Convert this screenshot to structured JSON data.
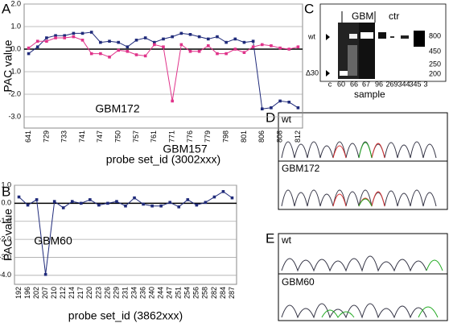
{
  "panel_labels": [
    "A",
    "B",
    "C",
    "D",
    "E"
  ],
  "chart_data": [
    {
      "type": "line",
      "y_label": "PAC value",
      "x_label": "probe set_id (3002xxx)",
      "categories": [
        "641",
        null,
        "729",
        null,
        "733",
        null,
        "741",
        null,
        "747",
        null,
        "750",
        null,
        "757",
        null,
        "761",
        null,
        "771",
        null,
        "776",
        null,
        "779",
        null,
        "798",
        null,
        "801",
        null,
        "806",
        null,
        "808",
        null,
        "812"
      ],
      "series": [
        {
          "name": "GBM157",
          "color": "#1f2a7a",
          "values": [
            -0.2,
            0.1,
            0.5,
            0.6,
            0.6,
            0.7,
            0.7,
            0.75,
            0.3,
            0.35,
            0.3,
            0.1,
            0.4,
            0.5,
            0.3,
            0.45,
            0.55,
            0.7,
            0.65,
            0.55,
            0.45,
            0.55,
            0.3,
            0.45,
            0.3,
            0.35,
            -2.65,
            -2.6,
            -2.3,
            -2.35,
            -2.6
          ]
        },
        {
          "name": "GBM172",
          "color": "#e0338a",
          "values": [
            0.05,
            0.35,
            0.35,
            0.5,
            0.5,
            0.55,
            0.4,
            -0.2,
            -0.2,
            -0.35,
            -0.05,
            -0.1,
            -0.25,
            -0.3,
            0.2,
            0.1,
            -2.3,
            0.2,
            -0.1,
            -0.1,
            0.15,
            -0.2,
            -0.2,
            0.0,
            -0.15,
            0.1,
            0.2,
            0.15,
            0.05,
            0.0,
            0.1
          ]
        }
      ],
      "ylim": [
        -3.5,
        2.0
      ],
      "yticks": [
        {
          "value": 2,
          "label": "2.0"
        },
        {
          "value": 1,
          "label": "1.0"
        },
        {
          "value": 0,
          "label": "0.0"
        },
        {
          "value": -1,
          "label": "-1.0"
        },
        {
          "value": -2,
          "label": "-2.0"
        },
        {
          "value": -3,
          "label": "-3.0"
        }
      ],
      "grid": true,
      "annotations": [
        "GBM172",
        "GBM157"
      ]
    },
    {
      "type": "line",
      "y_label": "PAC value",
      "x_label": "probe set_id (3862xxx)",
      "categories": [
        "192",
        "196",
        "202",
        "207",
        "210",
        "212",
        "214",
        "217",
        "220",
        "223",
        "226",
        "229",
        "231",
        "234",
        "236",
        "240",
        "244",
        "247",
        "251",
        "254",
        "256",
        "258",
        "282",
        "284",
        "287"
      ],
      "series": [
        {
          "name": "GBM60",
          "color": "#1f2a7a",
          "values": [
            0.35,
            -0.1,
            0.2,
            -3.95,
            0.1,
            -0.25,
            0.1,
            0.0,
            0.2,
            -0.1,
            0.0,
            0.1,
            -0.15,
            0.3,
            -0.05,
            -0.15,
            -0.15,
            0.05,
            -0.2,
            0.2,
            -0.1,
            0.05,
            0.35,
            0.65,
            0.3
          ]
        }
      ],
      "ylim": [
        -4.5,
        1.0
      ],
      "yticks": [
        {
          "value": 1,
          "label": "1.0"
        },
        {
          "value": 0,
          "label": "0.0"
        },
        {
          "value": -1,
          "label": "-1.0"
        },
        {
          "value": -2,
          "label": "-2.0"
        },
        {
          "value": -3,
          "label": "-3.0"
        },
        {
          "value": -4,
          "label": "-4.0"
        }
      ],
      "grid": true,
      "annotations": [
        "GBM60"
      ]
    }
  ],
  "gel": {
    "groups": [
      "GBM",
      "ctr"
    ],
    "bands": [
      "wt",
      "Δ30"
    ],
    "lanes": [
      "c",
      "60",
      "66",
      "67",
      "96",
      "269",
      "344",
      "345",
      "3"
    ],
    "markers": [
      "800",
      "450",
      "250",
      "200"
    ],
    "x_label": "sample"
  },
  "chromatograms": [
    {
      "top": "wt",
      "bottom": "GBM172"
    },
    {
      "top": "wt",
      "bottom": "GBM60"
    }
  ]
}
